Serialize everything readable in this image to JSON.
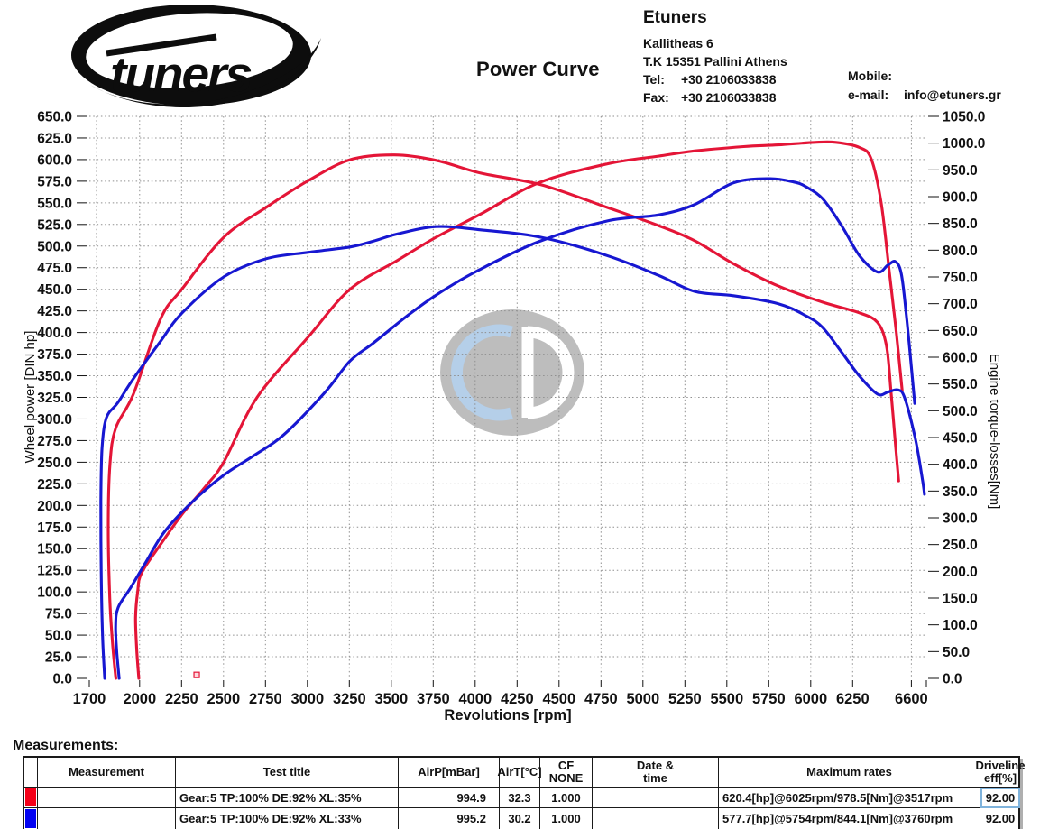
{
  "header": {
    "logo_text": "tuners",
    "title": "Power Curve",
    "company": "Etuners",
    "address_line1": "Kallitheas 6",
    "address_line2": "T.K 15351 Pallini Athens",
    "tel_label": "Tel:",
    "tel_value": "+30 2106033838",
    "fax_label": "Fax:",
    "fax_value": "+30 2106033838",
    "mobile_label": "Mobile:",
    "mobile_value": "",
    "email_label": "e-mail:",
    "email_value": "info@etuners.gr"
  },
  "chart_data": {
    "type": "line",
    "title": "Power Curve",
    "xlabel": "Revolutions [rpm]",
    "ylabel_left": "Wheel power [DIN hp]",
    "ylabel_right": "Engine torque-losses[Nm]",
    "x_ticks": [
      1700,
      2000,
      2250,
      2500,
      2750,
      3000,
      3250,
      3500,
      3750,
      4000,
      4250,
      4500,
      4750,
      5000,
      5250,
      5500,
      5750,
      6000,
      6250,
      6600
    ],
    "xlim": [
      1700,
      6690
    ],
    "ylim_left": [
      0,
      650
    ],
    "ytick_step_left": 25,
    "ylim_right": [
      0,
      1050
    ],
    "ytick_step_right": 50,
    "grid": true,
    "colors": {
      "red": "#e41537",
      "blue": "#1717d1",
      "grid": "#8f8f8f",
      "watermark_gray": "#bdbdbd",
      "watermark_blue": "#b5cfe9"
    },
    "series": [
      {
        "name": "red-power-hp",
        "axis": "left",
        "color": "#e41537",
        "max_label": "620.4[hp]@6025rpm",
        "points": [
          [
            1995,
            0
          ],
          [
            1982,
            35
          ],
          [
            1976,
            70
          ],
          [
            1988,
            100
          ],
          [
            2012,
            122
          ],
          [
            2125,
            155
          ],
          [
            2254,
            190
          ],
          [
            2393,
            222
          ],
          [
            2501,
            250
          ],
          [
            2700,
            325
          ],
          [
            3006,
            395
          ],
          [
            3254,
            450
          ],
          [
            3533,
            483
          ],
          [
            3765,
            510
          ],
          [
            4033,
            537
          ],
          [
            4377,
            573
          ],
          [
            4786,
            595
          ],
          [
            5092,
            604
          ],
          [
            5307,
            610
          ],
          [
            5600,
            615
          ],
          [
            5807,
            617
          ],
          [
            6025,
            620
          ],
          [
            6150,
            620
          ],
          [
            6291,
            614
          ],
          [
            6360,
            601
          ],
          [
            6420,
            550
          ],
          [
            6470,
            468
          ],
          [
            6510,
            400
          ],
          [
            6545,
            333
          ]
        ]
      },
      {
        "name": "red-torque-nm",
        "axis": "right",
        "color": "#e41537",
        "max_label": "978.5[Nm]@3517rpm",
        "points": [
          [
            1858,
            0
          ],
          [
            1840,
            60
          ],
          [
            1822,
            150
          ],
          [
            1813,
            280
          ],
          [
            1823,
            400
          ],
          [
            1858,
            468
          ],
          [
            1963,
            531
          ],
          [
            2125,
            672
          ],
          [
            2254,
            728
          ],
          [
            2501,
            824
          ],
          [
            2754,
            880
          ],
          [
            3006,
            930
          ],
          [
            3254,
            969
          ],
          [
            3517,
            978
          ],
          [
            3765,
            968
          ],
          [
            4033,
            944
          ],
          [
            4394,
            922
          ],
          [
            4786,
            880
          ],
          [
            5092,
            846
          ],
          [
            5307,
            818
          ],
          [
            5538,
            775
          ],
          [
            5807,
            733
          ],
          [
            6070,
            703
          ],
          [
            6290,
            683
          ],
          [
            6398,
            665
          ],
          [
            6451,
            622
          ],
          [
            6478,
            538
          ],
          [
            6507,
            430
          ],
          [
            6524,
            369
          ]
        ]
      },
      {
        "name": "blue-power-hp",
        "axis": "left",
        "color": "#1717d1",
        "max_label": "577.7[hp]@5754rpm",
        "points": [
          [
            1878,
            0
          ],
          [
            1864,
            30
          ],
          [
            1857,
            60
          ],
          [
            1872,
            82
          ],
          [
            1947,
            105
          ],
          [
            2039,
            135
          ],
          [
            2146,
            169
          ],
          [
            2308,
            203
          ],
          [
            2501,
            235
          ],
          [
            2684,
            258
          ],
          [
            2861,
            282
          ],
          [
            3101,
            330
          ],
          [
            3254,
            367
          ],
          [
            3394,
            388
          ],
          [
            3600,
            420
          ],
          [
            3765,
            443
          ],
          [
            4000,
            470
          ],
          [
            4377,
            505
          ],
          [
            4786,
            529
          ],
          [
            5092,
            536
          ],
          [
            5307,
            548
          ],
          [
            5538,
            573
          ],
          [
            5754,
            578
          ],
          [
            5900,
            574
          ],
          [
            5968,
            569
          ],
          [
            6070,
            555
          ],
          [
            6183,
            524
          ],
          [
            6290,
            489
          ],
          [
            6398,
            470
          ],
          [
            6460,
            478
          ],
          [
            6505,
            482
          ],
          [
            6540,
            468
          ],
          [
            6570,
            420
          ],
          [
            6600,
            360
          ],
          [
            6620,
            318
          ]
        ]
      },
      {
        "name": "blue-torque-nm",
        "axis": "right",
        "color": "#1717d1",
        "max_label": "844.1[Nm]@3760rpm",
        "points": [
          [
            1792,
            0
          ],
          [
            1779,
            80
          ],
          [
            1771,
            200
          ],
          [
            1769,
            330
          ],
          [
            1776,
            430
          ],
          [
            1802,
            487
          ],
          [
            1870,
            515
          ],
          [
            1963,
            560
          ],
          [
            2125,
            630
          ],
          [
            2254,
            683
          ],
          [
            2501,
            750
          ],
          [
            2754,
            784
          ],
          [
            3006,
            796
          ],
          [
            3254,
            806
          ],
          [
            3394,
            817
          ],
          [
            3533,
            830
          ],
          [
            3765,
            844
          ],
          [
            4033,
            838
          ],
          [
            4394,
            824
          ],
          [
            4786,
            790
          ],
          [
            5092,
            753
          ],
          [
            5307,
            723
          ],
          [
            5538,
            715
          ],
          [
            5807,
            700
          ],
          [
            5968,
            678
          ],
          [
            6070,
            656
          ],
          [
            6183,
            610
          ],
          [
            6290,
            565
          ],
          [
            6398,
            531
          ],
          [
            6460,
            535
          ],
          [
            6520,
            539
          ],
          [
            6560,
            524
          ],
          [
            6624,
            447
          ],
          [
            6667,
            369
          ],
          [
            6678,
            344
          ]
        ]
      }
    ],
    "marker": {
      "rpm": 2340,
      "value": 4,
      "axis": "left",
      "color": "#e41537"
    }
  },
  "measurements": {
    "heading": "Measurements:",
    "columns": [
      "Measurement",
      "Test title",
      "AirP[mBar]",
      "AirT[°C]",
      "CF\nNONE",
      "Date &\ntime",
      "Maximum rates",
      "Driveline\neff[%]"
    ],
    "rows": [
      {
        "color": "#f40019",
        "measurement": "",
        "test_title": "Gear:5 TP:100% DE:92% XL:35%",
        "airp": "994.9",
        "airt": "32.3",
        "cf": "1.000",
        "date": "",
        "max_rates": "620.4[hp]@6025rpm/978.5[Nm]@3517rpm",
        "eff": "92.00",
        "highlight": true
      },
      {
        "color": "#0202f2",
        "measurement": "",
        "test_title": "Gear:5 TP:100% DE:92% XL:33%",
        "airp": "995.2",
        "airt": "30.2",
        "cf": "1.000",
        "date": "",
        "max_rates": "577.7[hp]@5754rpm/844.1[Nm]@3760rpm",
        "eff": "92.00",
        "highlight": false
      }
    ]
  }
}
